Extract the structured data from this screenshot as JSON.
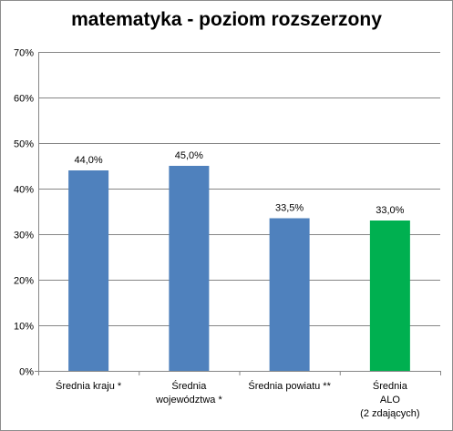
{
  "chart_data": {
    "type": "bar",
    "title": "matematyka - poziom rozszerzony",
    "xlabel": "",
    "ylabel": "",
    "categories": [
      [
        "Średnia kraju *"
      ],
      [
        "Średnia",
        "województwa *"
      ],
      [
        "Średnia powiatu **"
      ],
      [
        "Średnia",
        "ALO",
        "(2 zdających)"
      ]
    ],
    "values": [
      44.0,
      45.0,
      33.5,
      33.0
    ],
    "value_labels": [
      "44,0%",
      "45,0%",
      "33,5%",
      "33,0%"
    ],
    "bar_colors": [
      "#4f81bd",
      "#4f81bd",
      "#4f81bd",
      "#00b050"
    ],
    "ylim": [
      0,
      70
    ],
    "yticks": [
      0,
      10,
      20,
      30,
      40,
      50,
      60,
      70
    ],
    "ytick_labels": [
      "0%",
      "10%",
      "20%",
      "30%",
      "40%",
      "50%",
      "60%",
      "70%"
    ],
    "grid": true,
    "legend": "none"
  }
}
